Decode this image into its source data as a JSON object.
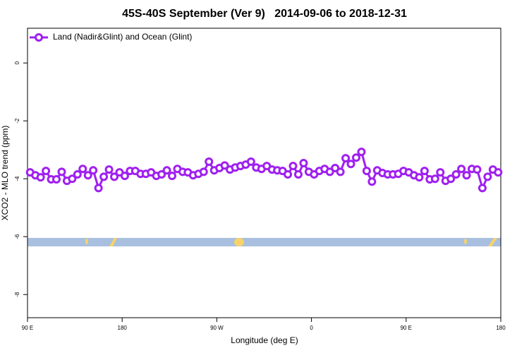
{
  "chart_data": {
    "type": "line",
    "title": "45S-40S September (Ver 9)   2014-09-06 to 2018-12-31",
    "xlabel": "Longitude (deg E)",
    "ylabel": "XCO2 - MLO trend (ppm)",
    "xlim": [
      90,
      540
    ],
    "ylim": [
      -8.8,
      1.2
    ],
    "xticks": [
      {
        "value": 90,
        "label": "90 E"
      },
      {
        "value": 180,
        "label": "180"
      },
      {
        "value": 270,
        "label": "90 W"
      },
      {
        "value": 360,
        "label": "0"
      },
      {
        "value": 450,
        "label": "90 E"
      },
      {
        "value": 540,
        "label": "180"
      }
    ],
    "yticks": [
      0,
      -2,
      -4,
      -6,
      -8
    ],
    "legend": "top-left",
    "x": [
      92.5,
      97.5,
      102.5,
      107.5,
      112.5,
      117.5,
      122.5,
      127.5,
      132.5,
      137.5,
      142.5,
      147.5,
      152.5,
      157.5,
      162.5,
      167.5,
      172.5,
      177.5,
      182.5,
      187.5,
      192.5,
      197.5,
      202.5,
      207.5,
      212.5,
      217.5,
      222.5,
      227.5,
      232.5,
      237.5,
      242.5,
      247.5,
      252.5,
      257.5,
      262.5,
      267.5,
      272.5,
      277.5,
      282.5,
      287.5,
      292.5,
      297.5,
      302.5,
      307.5,
      312.5,
      317.5,
      322.5,
      327.5,
      332.5,
      337.5,
      342.5,
      347.5,
      352.5,
      357.5,
      362.5,
      367.5,
      372.5,
      377.5,
      382.5,
      387.5,
      392.5,
      397.5,
      402.5,
      407.5,
      412.5,
      417.5,
      422.5,
      427.5,
      432.5,
      437.5,
      442.5,
      447.5,
      452.5,
      457.5,
      462.5,
      467.5,
      472.5,
      477.5,
      482.5,
      487.5,
      492.5,
      497.5,
      502.5,
      507.5,
      512.5,
      517.5,
      522.5,
      527.5,
      532.5,
      537.5
    ],
    "series": [
      {
        "name": "Land (Nadir&Glint) and Ocean (Glint)",
        "color": "#a020f0",
        "values": [
          -3.78,
          -3.88,
          -3.95,
          -3.73,
          -4.02,
          -4.02,
          -3.76,
          -4.07,
          -4.0,
          -3.85,
          -3.66,
          -3.88,
          -3.71,
          -4.32,
          -3.93,
          -3.68,
          -3.93,
          -3.78,
          -3.9,
          -3.73,
          -3.73,
          -3.83,
          -3.83,
          -3.78,
          -3.9,
          -3.85,
          -3.71,
          -3.9,
          -3.66,
          -3.76,
          -3.78,
          -3.88,
          -3.83,
          -3.76,
          -3.41,
          -3.71,
          -3.63,
          -3.54,
          -3.68,
          -3.61,
          -3.56,
          -3.51,
          -3.41,
          -3.61,
          -3.66,
          -3.56,
          -3.68,
          -3.71,
          -3.73,
          -3.85,
          -3.56,
          -3.85,
          -3.46,
          -3.76,
          -3.85,
          -3.73,
          -3.66,
          -3.76,
          -3.63,
          -3.76,
          -3.29,
          -3.49,
          -3.27,
          -3.07,
          -3.73,
          -4.1,
          -3.71,
          -3.8,
          -3.85,
          -3.85,
          -3.83,
          -3.73,
          -3.78,
          -3.88,
          -3.95,
          -3.73,
          -4.02,
          -4.0,
          -3.78,
          -4.07,
          -4.0,
          -3.85,
          -3.66,
          -3.88,
          -3.66,
          -3.68,
          -4.32,
          -3.93,
          -3.68,
          -3.78
        ]
      }
    ]
  }
}
